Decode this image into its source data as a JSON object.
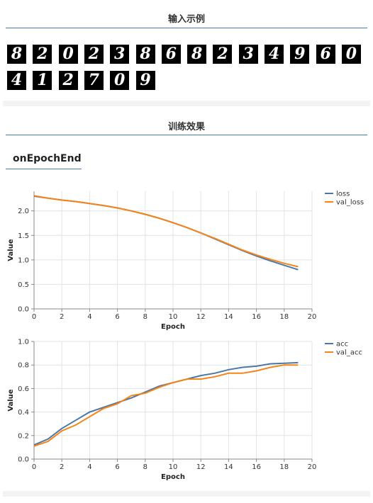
{
  "header": {
    "input_title": "输入示例",
    "training_title": "训练效果",
    "callback_title": "onEpochEnd"
  },
  "digits": [
    "8",
    "2",
    "0",
    "2",
    "3",
    "8",
    "6",
    "8",
    "2",
    "3",
    "4",
    "9",
    "6",
    "0",
    "4",
    "1",
    "2",
    "7",
    "0",
    "9"
  ],
  "chart_data": [
    {
      "type": "line",
      "xlabel": "Epoch",
      "ylabel": "Value",
      "xlim": [
        0,
        20
      ],
      "ylim": [
        0,
        2.4
      ],
      "xticks": [
        0,
        2,
        4,
        6,
        8,
        10,
        12,
        14,
        16,
        18,
        20
      ],
      "yticks": [
        0.0,
        0.5,
        1.0,
        1.5,
        2.0
      ],
      "ytick_labels": [
        "0.0",
        "0.5",
        "1.0",
        "1.5",
        "2.0"
      ],
      "grid": true,
      "legend": "right",
      "x": [
        0,
        1,
        2,
        3,
        4,
        5,
        6,
        7,
        8,
        9,
        10,
        11,
        12,
        13,
        14,
        15,
        16,
        17,
        18,
        19
      ],
      "series": [
        {
          "name": "loss",
          "color": "#4c78a8",
          "values": [
            2.3,
            2.26,
            2.22,
            2.19,
            2.15,
            2.11,
            2.06,
            2.0,
            1.93,
            1.85,
            1.76,
            1.66,
            1.55,
            1.43,
            1.31,
            1.19,
            1.08,
            0.98,
            0.89,
            0.8
          ]
        },
        {
          "name": "val_loss",
          "color": "#f58518",
          "values": [
            2.31,
            2.26,
            2.22,
            2.19,
            2.15,
            2.11,
            2.06,
            2.0,
            1.93,
            1.85,
            1.76,
            1.66,
            1.55,
            1.44,
            1.32,
            1.2,
            1.1,
            1.01,
            0.93,
            0.86
          ]
        }
      ]
    },
    {
      "type": "line",
      "xlabel": "Epoch",
      "ylabel": "Value",
      "xlim": [
        0,
        20
      ],
      "ylim": [
        0,
        1
      ],
      "xticks": [
        0,
        2,
        4,
        6,
        8,
        10,
        12,
        14,
        16,
        18,
        20
      ],
      "yticks": [
        0.0,
        0.2,
        0.4,
        0.6,
        0.8,
        1.0
      ],
      "ytick_labels": [
        "0.0",
        "0.2",
        "0.4",
        "0.6",
        "0.8",
        "1.0"
      ],
      "grid": true,
      "legend": "right",
      "x": [
        0,
        1,
        2,
        3,
        4,
        5,
        6,
        7,
        8,
        9,
        10,
        11,
        12,
        13,
        14,
        15,
        16,
        17,
        18,
        19
      ],
      "series": [
        {
          "name": "acc",
          "color": "#4c78a8",
          "values": [
            0.12,
            0.17,
            0.26,
            0.33,
            0.4,
            0.44,
            0.48,
            0.52,
            0.57,
            0.62,
            0.65,
            0.68,
            0.71,
            0.73,
            0.76,
            0.78,
            0.79,
            0.81,
            0.815,
            0.82
          ]
        },
        {
          "name": "val_acc",
          "color": "#f58518",
          "values": [
            0.11,
            0.15,
            0.24,
            0.29,
            0.36,
            0.43,
            0.47,
            0.54,
            0.56,
            0.61,
            0.65,
            0.68,
            0.68,
            0.7,
            0.73,
            0.73,
            0.75,
            0.78,
            0.8,
            0.8
          ]
        }
      ]
    }
  ]
}
